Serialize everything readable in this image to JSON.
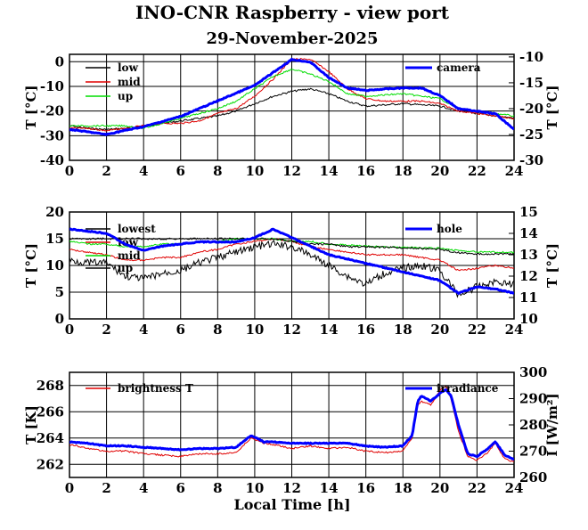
{
  "title": "INO-CNR Raspberry - view port",
  "subtitle": "29-November-2025",
  "xlabel": "Local Time [h]",
  "colors": {
    "black": "#000000",
    "red": "#e00000",
    "green": "#00dd00",
    "blue": "#0000ff"
  },
  "chart_data": [
    {
      "type": "line",
      "x": [
        0,
        1,
        2,
        3,
        4,
        5,
        6,
        7,
        8,
        9,
        10,
        11,
        12,
        13,
        14,
        15,
        16,
        17,
        18,
        19,
        20,
        21,
        22,
        23,
        24
      ],
      "xlim": [
        0,
        24
      ],
      "xticks": [
        "0",
        "2",
        "4",
        "6",
        "8",
        "10",
        "12",
        "14",
        "16",
        "18",
        "20",
        "22",
        "24"
      ],
      "ylabel": "T [°C]",
      "ylim": [
        -40,
        3
      ],
      "yticks": [
        "-40",
        "-30",
        "-20",
        "-10",
        "0"
      ],
      "y2label": "T [°C]",
      "y2lim": [
        -30,
        -9.5
      ],
      "y2ticks": [
        "-30",
        "-25",
        "-20",
        "-15",
        "-10"
      ],
      "series": [
        {
          "name": "low",
          "axis": "left",
          "color": "black",
          "values": [
            -26,
            -27,
            -27.5,
            -27,
            -26,
            -25,
            -24,
            -23,
            -22,
            -20,
            -17,
            -14,
            -12,
            -11,
            -13,
            -16,
            -18,
            -17.5,
            -17,
            -17.5,
            -18,
            -20,
            -21,
            -22,
            -23
          ]
        },
        {
          "name": "mid",
          "axis": "left",
          "color": "red",
          "values": [
            -27,
            -27,
            -28,
            -27,
            -26,
            -25,
            -25,
            -24,
            -21,
            -19,
            -14,
            -7,
            1,
            1,
            -4,
            -11,
            -15,
            -16,
            -16,
            -16,
            -17,
            -20,
            -21,
            -22,
            -23
          ]
        },
        {
          "name": "up",
          "axis": "left",
          "color": "green",
          "values": [
            -26,
            -26,
            -26,
            -26,
            -27,
            -25,
            -23,
            -21,
            -19,
            -16,
            -11,
            -6,
            -3,
            -5,
            -8,
            -13,
            -14,
            -13.5,
            -13,
            -14,
            -15,
            -19,
            -20,
            -21,
            -22
          ]
        },
        {
          "name": "camera",
          "axis": "right",
          "color": "blue",
          "values": [
            -24,
            -24.5,
            -25,
            -24.2,
            -23.5,
            -22.5,
            -21.5,
            -20,
            -18.5,
            -17,
            -15.5,
            -13,
            -10.5,
            -11,
            -14,
            -16,
            -16.5,
            -16.2,
            -16,
            -16,
            -17.5,
            -20,
            -20.5,
            -21,
            -24
          ]
        }
      ]
    },
    {
      "type": "line",
      "x": [
        0,
        1,
        2,
        3,
        4,
        5,
        6,
        7,
        8,
        9,
        10,
        11,
        12,
        13,
        14,
        15,
        16,
        17,
        18,
        19,
        20,
        21,
        22,
        23,
        24
      ],
      "xlim": [
        0,
        24
      ],
      "xticks": [
        "0",
        "2",
        "4",
        "6",
        "8",
        "10",
        "12",
        "14",
        "16",
        "18",
        "20",
        "22",
        "24"
      ],
      "ylabel": "T [°C]",
      "ylim": [
        0,
        20
      ],
      "yticks": [
        "0",
        "5",
        "10",
        "15",
        "20"
      ],
      "y2label": "T [°C]",
      "y2lim": [
        10,
        15
      ],
      "y2ticks": [
        "10",
        "11",
        "12",
        "13",
        "14",
        "15"
      ],
      "series": [
        {
          "name": "lowest",
          "axis": "left",
          "color": "black",
          "values": [
            11,
            10.5,
            10.5,
            8,
            7.5,
            8.5,
            9,
            10.5,
            11.5,
            12.5,
            13.5,
            14,
            13.5,
            12,
            10,
            8,
            6.5,
            8.5,
            9.5,
            10,
            9,
            4.5,
            6,
            7,
            6.5
          ]
        },
        {
          "name": "low",
          "axis": "left",
          "color": "red",
          "values": [
            13,
            12.5,
            12,
            11,
            11,
            11.5,
            11.5,
            12.5,
            13,
            14,
            14.5,
            15,
            14.5,
            13.5,
            13,
            12.5,
            12,
            12,
            12,
            11.5,
            11,
            9,
            9.5,
            10,
            9.5
          ]
        },
        {
          "name": "mid",
          "axis": "left",
          "color": "green",
          "values": [
            14.5,
            14,
            14,
            13.5,
            13.5,
            14,
            14,
            14.5,
            14.5,
            15,
            15,
            15,
            14.5,
            14.5,
            14,
            13.8,
            13.6,
            13.5,
            13.4,
            13.3,
            13.2,
            12.8,
            12.5,
            12.5,
            12.4
          ]
        },
        {
          "name": "up",
          "axis": "left",
          "color": "black",
          "values": [
            15,
            15,
            15,
            15,
            15,
            15,
            15,
            15,
            15,
            15,
            15,
            15,
            14.5,
            14,
            14,
            13.5,
            13.5,
            13.4,
            13.3,
            13.2,
            13,
            12.4,
            12.1,
            12.2,
            12.1
          ]
        },
        {
          "name": "hole",
          "axis": "right",
          "color": "blue",
          "values": [
            14.2,
            14.1,
            14.0,
            13.5,
            13.2,
            13.4,
            13.5,
            13.6,
            13.6,
            13.6,
            13.8,
            14.2,
            13.8,
            13.4,
            13.0,
            12.8,
            12.6,
            12.4,
            12.2,
            12.0,
            11.8,
            11.2,
            11.5,
            11.4,
            11.2
          ]
        }
      ]
    },
    {
      "type": "line",
      "x": [
        0,
        1,
        2,
        3,
        4,
        5,
        6,
        7,
        8,
        9,
        9.8,
        10.5,
        11,
        12,
        13,
        14,
        15,
        16,
        17,
        18,
        18.5,
        18.8,
        19,
        19.5,
        20,
        20.3,
        20.6,
        21,
        21.5,
        22,
        22.5,
        23,
        23.5,
        24
      ],
      "xlim": [
        0,
        24
      ],
      "xticks": [
        "0",
        "2",
        "4",
        "6",
        "8",
        "10",
        "12",
        "14",
        "16",
        "18",
        "20",
        "22",
        "24"
      ],
      "ylabel": "T [K]",
      "ylim": [
        261,
        269
      ],
      "yticks": [
        "262",
        "264",
        "266",
        "268"
      ],
      "y2label": "I [W/m²]",
      "y2lim": [
        260,
        300
      ],
      "y2ticks": [
        "260",
        "270",
        "280",
        "290",
        "300"
      ],
      "series": [
        {
          "name": "brightness T",
          "axis": "left",
          "color": "red",
          "values": [
            263.5,
            263.2,
            263,
            263,
            262.8,
            262.7,
            262.6,
            262.8,
            262.8,
            262.9,
            264,
            263.6,
            263.5,
            263.2,
            263.4,
            263.2,
            263.3,
            263,
            262.9,
            263,
            264,
            266.5,
            266.8,
            266.5,
            267.6,
            268,
            267,
            264.5,
            262.6,
            262.3,
            262.8,
            263.6,
            262.4,
            262.2
          ]
        },
        {
          "name": "irradiance",
          "axis": "right",
          "color": "blue",
          "values": [
            273.5,
            273,
            272,
            272,
            271.5,
            271,
            270.5,
            271,
            271,
            271.5,
            276,
            273.5,
            273.5,
            273,
            273,
            273,
            273,
            272,
            271.5,
            272,
            276,
            289,
            291,
            289,
            292,
            293.5,
            291,
            280,
            269,
            268,
            270.5,
            273.5,
            268.5,
            267
          ]
        }
      ]
    }
  ]
}
